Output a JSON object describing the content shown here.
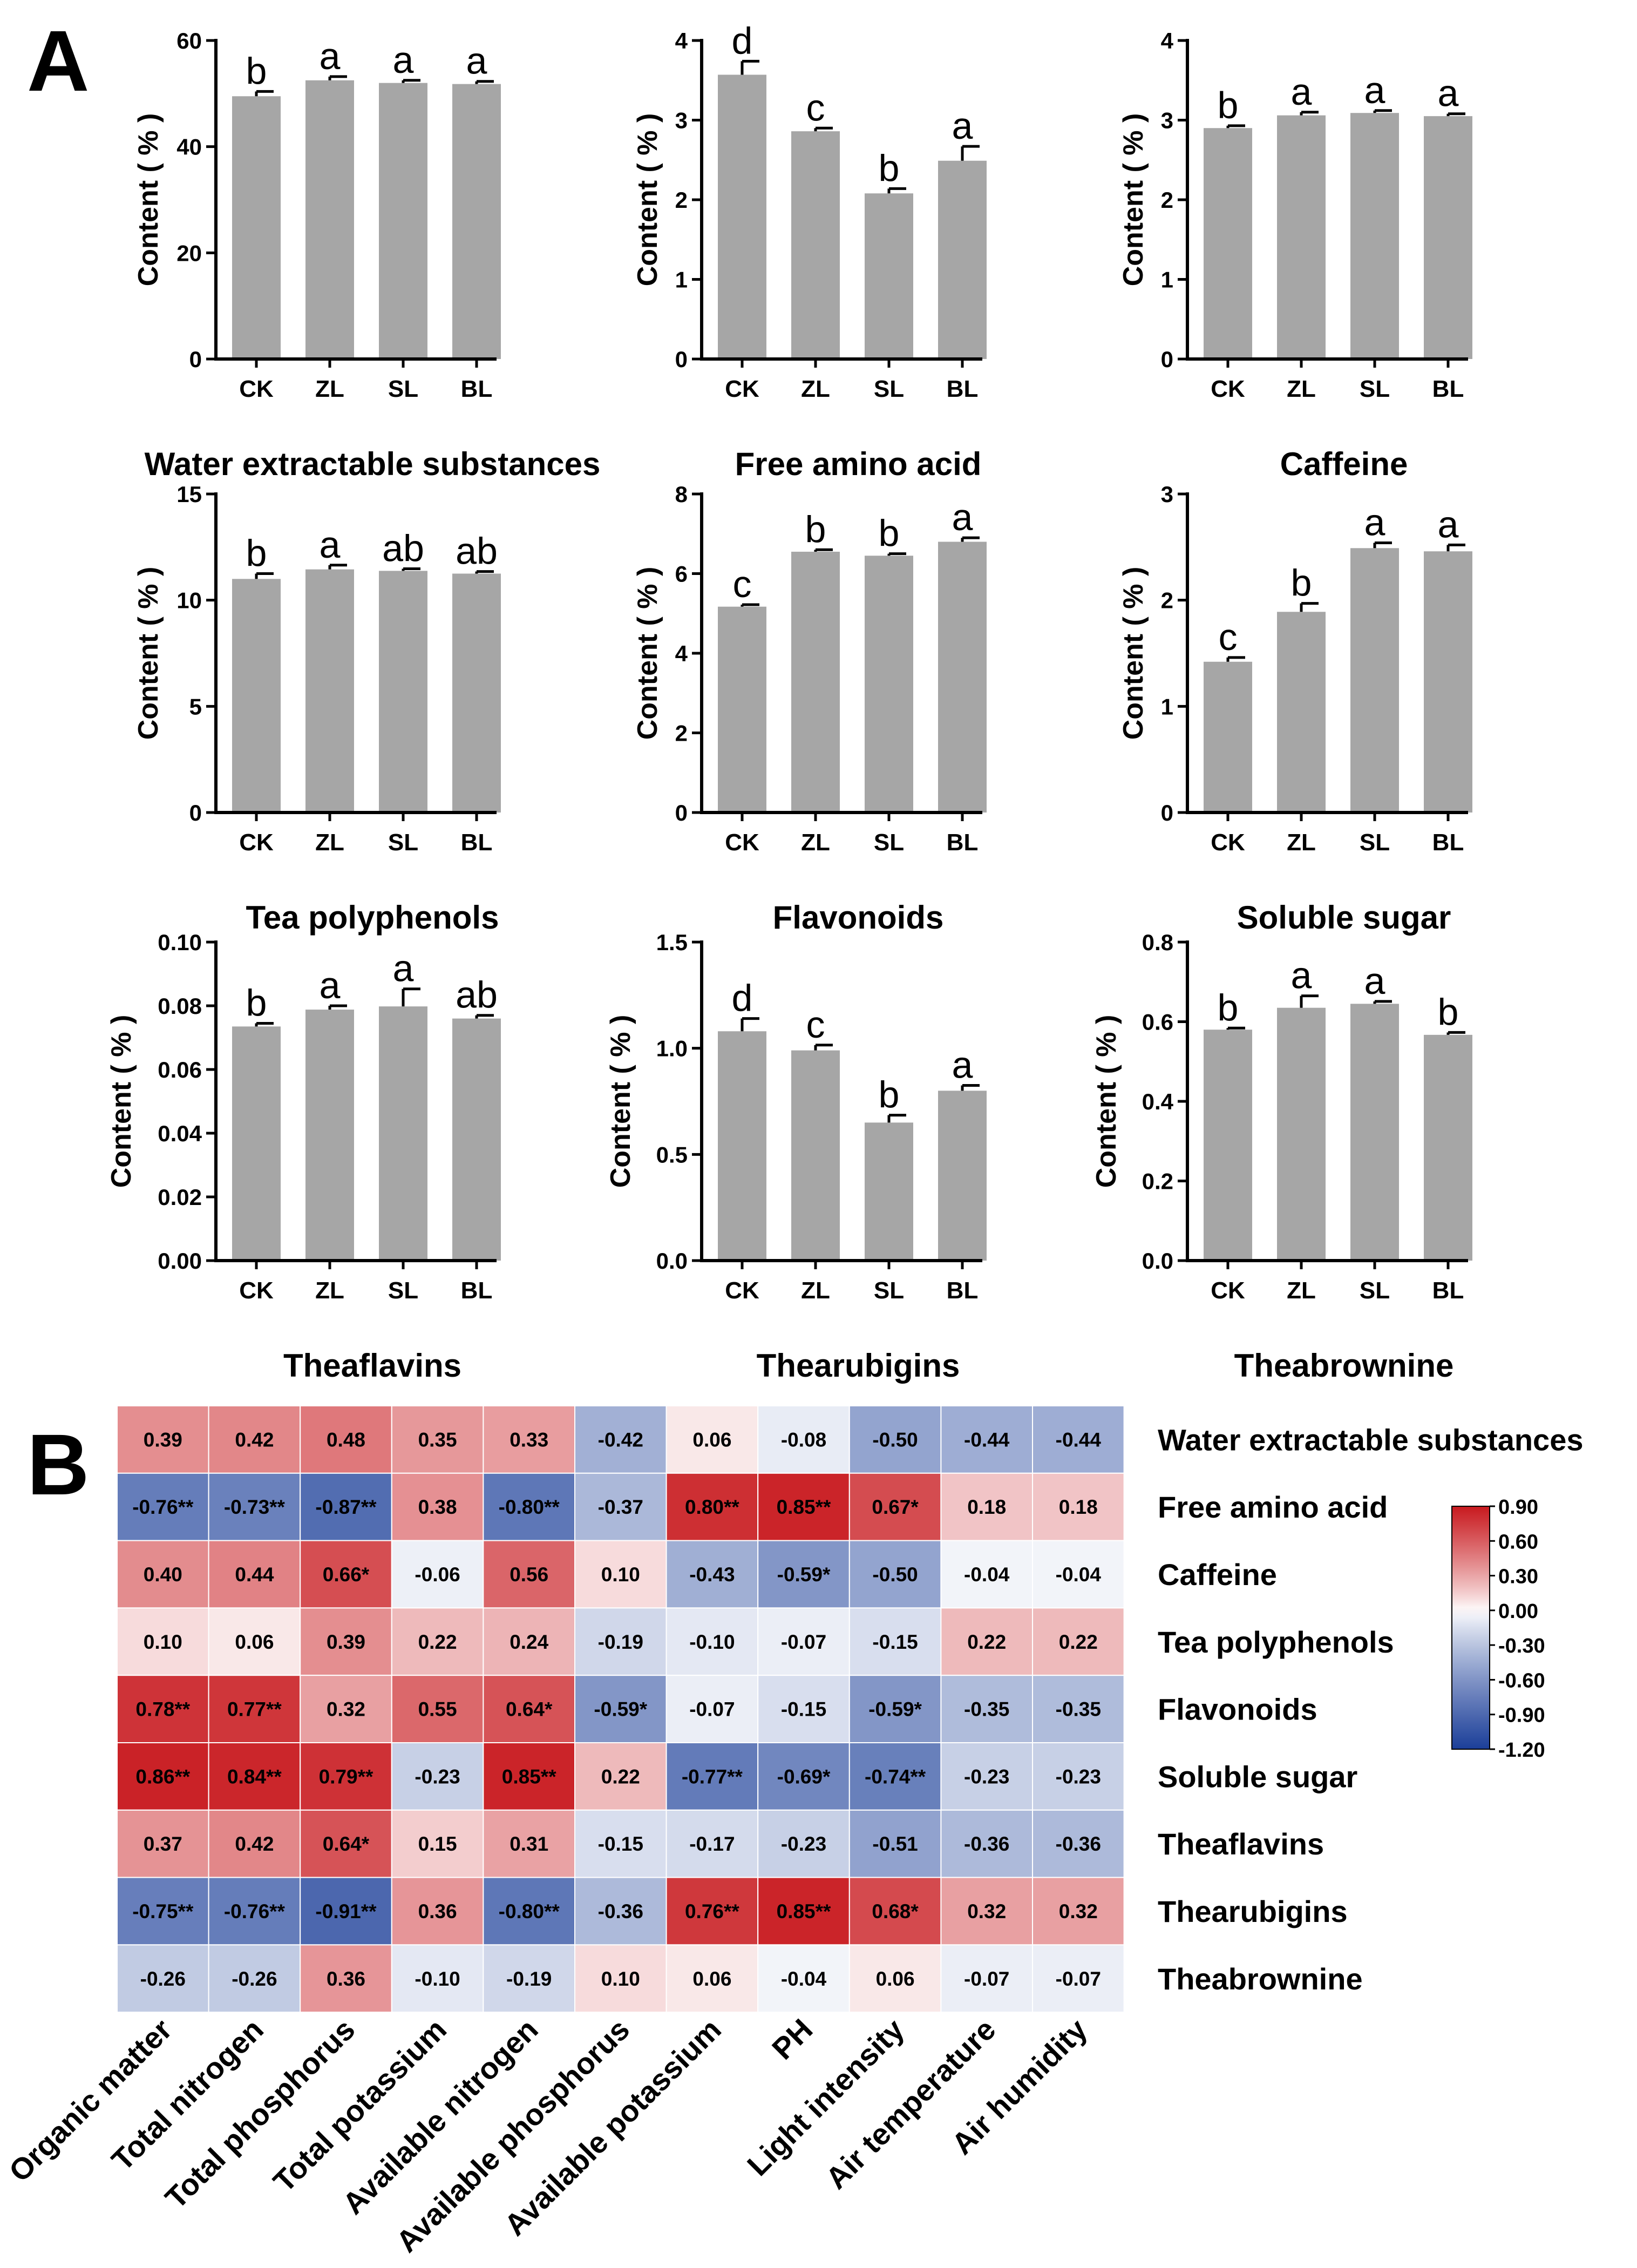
{
  "panel_labels": {
    "a": "A",
    "b": "B"
  },
  "colors": {
    "bar": "#a6a6a6",
    "axis": "#000000",
    "heat_neg": "#1c3f99",
    "heat_mid": "#ffffff",
    "heat_pos": "#c8191e"
  },
  "chart_data": [
    {
      "type": "bar",
      "title": "Water extractable substances",
      "ylabel": "Content ( % )",
      "categories": [
        "CK",
        "ZL",
        "SL",
        "BL"
      ],
      "values": [
        49.5,
        52.5,
        52.0,
        51.8
      ],
      "errors": [
        0.9,
        0.7,
        0.5,
        0.5
      ],
      "letters": [
        "b",
        "a",
        "a",
        "a"
      ],
      "ylim": [
        0,
        60
      ],
      "ticks": [
        0,
        20,
        40,
        60
      ],
      "tick_labels": [
        "0",
        "20",
        "40",
        "60"
      ]
    },
    {
      "type": "bar",
      "title": "Free amino acid",
      "ylabel": "Content ( % )",
      "categories": [
        "CK",
        "ZL",
        "SL",
        "BL"
      ],
      "values": [
        3.57,
        2.86,
        2.08,
        2.49
      ],
      "errors": [
        0.17,
        0.04,
        0.06,
        0.18
      ],
      "letters": [
        "d",
        "c",
        "b",
        "a"
      ],
      "ylim": [
        0,
        4
      ],
      "ticks": [
        0,
        1,
        2,
        3,
        4
      ],
      "tick_labels": [
        "0",
        "1",
        "2",
        "3",
        "4"
      ]
    },
    {
      "type": "bar",
      "title": "Caffeine",
      "ylabel": "Content ( % )",
      "categories": [
        "CK",
        "ZL",
        "SL",
        "BL"
      ],
      "values": [
        2.9,
        3.06,
        3.09,
        3.05
      ],
      "errors": [
        0.03,
        0.04,
        0.03,
        0.03
      ],
      "letters": [
        "b",
        "a",
        "a",
        "a"
      ],
      "ylim": [
        0,
        4
      ],
      "ticks": [
        0,
        1,
        2,
        3,
        4
      ],
      "tick_labels": [
        "0",
        "1",
        "2",
        "3",
        "4"
      ]
    },
    {
      "type": "bar",
      "title": "Tea polyphenols",
      "ylabel": "Content ( % )",
      "categories": [
        "CK",
        "ZL",
        "SL",
        "BL"
      ],
      "values": [
        11.0,
        11.45,
        11.38,
        11.25
      ],
      "errors": [
        0.25,
        0.2,
        0.1,
        0.1
      ],
      "letters": [
        "b",
        "a",
        "ab",
        "ab"
      ],
      "ylim": [
        0,
        15
      ],
      "ticks": [
        0,
        5,
        10,
        15
      ],
      "tick_labels": [
        "0",
        "5",
        "10",
        "15"
      ]
    },
    {
      "type": "bar",
      "title": "Flavonoids",
      "ylabel": "Content ( % )",
      "categories": [
        "CK",
        "ZL",
        "SL",
        "BL"
      ],
      "values": [
        5.17,
        6.55,
        6.45,
        6.8
      ],
      "errors": [
        0.05,
        0.05,
        0.05,
        0.1
      ],
      "letters": [
        "c",
        "b",
        "b",
        "a"
      ],
      "ylim": [
        0,
        8
      ],
      "ticks": [
        0,
        2,
        4,
        6,
        8
      ],
      "tick_labels": [
        "0",
        "2",
        "4",
        "6",
        "8"
      ]
    },
    {
      "type": "bar",
      "title": "Soluble sugar",
      "ylabel": "Content ( % )",
      "categories": [
        "CK",
        "ZL",
        "SL",
        "BL"
      ],
      "values": [
        1.42,
        1.89,
        2.49,
        2.46
      ],
      "errors": [
        0.04,
        0.08,
        0.05,
        0.06
      ],
      "letters": [
        "c",
        "b",
        "a",
        "a"
      ],
      "ylim": [
        0,
        3
      ],
      "ticks": [
        0,
        1,
        2,
        3
      ],
      "tick_labels": [
        "0",
        "1",
        "2",
        "3"
      ]
    },
    {
      "type": "bar",
      "title": "Theaflavins",
      "ylabel": "Content ( % )",
      "categories": [
        "CK",
        "ZL",
        "SL",
        "BL"
      ],
      "values": [
        0.0735,
        0.0788,
        0.0798,
        0.076
      ],
      "errors": [
        0.001,
        0.0012,
        0.0055,
        0.001
      ],
      "letters": [
        "b",
        "a",
        "a",
        "ab"
      ],
      "ylim": [
        0,
        0.1
      ],
      "ticks": [
        0,
        0.02,
        0.04,
        0.06,
        0.08,
        0.1
      ],
      "tick_labels": [
        "0.00",
        "0.02",
        "0.04",
        "0.06",
        "0.08",
        "0.10"
      ]
    },
    {
      "type": "bar",
      "title": "Thearubigins",
      "ylabel": "Content ( % )",
      "categories": [
        "CK",
        "ZL",
        "SL",
        "BL"
      ],
      "values": [
        1.08,
        0.99,
        0.65,
        0.8
      ],
      "errors": [
        0.06,
        0.025,
        0.035,
        0.025
      ],
      "letters": [
        "d",
        "c",
        "b",
        "a"
      ],
      "ylim": [
        0,
        1.5
      ],
      "ticks": [
        0,
        0.5,
        1.0,
        1.5
      ],
      "tick_labels": [
        "0.0",
        "0.5",
        "1.0",
        "1.5"
      ]
    },
    {
      "type": "bar",
      "title": "Theabrownine",
      "ylabel": "Content ( % )",
      "categories": [
        "CK",
        "ZL",
        "SL",
        "BL"
      ],
      "values": [
        0.58,
        0.635,
        0.645,
        0.567
      ],
      "errors": [
        0.004,
        0.03,
        0.006,
        0.006
      ],
      "letters": [
        "b",
        "a",
        "a",
        "b"
      ],
      "ylim": [
        0,
        0.8
      ],
      "ticks": [
        0,
        0.2,
        0.4,
        0.6,
        0.8
      ],
      "tick_labels": [
        "0.0",
        "0.2",
        "0.4",
        "0.6",
        "0.8"
      ]
    },
    {
      "type": "heatmap",
      "rows": [
        "Water extractable substances",
        "Free amino acid",
        "Caffeine",
        "Tea polyphenols",
        "Flavonoids",
        "Soluble sugar",
        "Theaflavins",
        "Thearubigins",
        "Theabrownine"
      ],
      "columns": [
        "Organic matter",
        "Total nitrogen",
        "Total phosphorus",
        "Total potassium",
        "Available nitrogen",
        "Available phosphorus",
        "Available potassium",
        "PH",
        "Light intensity",
        "Air temperature",
        "Air humidity"
      ],
      "values": [
        [
          0.39,
          0.42,
          0.48,
          0.35,
          0.33,
          -0.42,
          0.06,
          -0.08,
          -0.5,
          -0.44,
          -0.44
        ],
        [
          -0.76,
          -0.73,
          -0.87,
          0.38,
          -0.8,
          -0.37,
          0.8,
          0.85,
          0.67,
          0.18,
          0.18
        ],
        [
          0.4,
          0.44,
          0.66,
          -0.06,
          0.56,
          0.1,
          -0.43,
          -0.59,
          -0.5,
          -0.04,
          -0.04
        ],
        [
          0.1,
          0.06,
          0.39,
          0.22,
          0.24,
          -0.19,
          -0.1,
          -0.07,
          -0.15,
          0.22,
          0.22
        ],
        [
          0.78,
          0.77,
          0.32,
          0.55,
          0.64,
          -0.59,
          -0.07,
          -0.15,
          -0.59,
          -0.35,
          -0.35
        ],
        [
          0.86,
          0.84,
          0.79,
          -0.23,
          0.85,
          0.22,
          -0.77,
          -0.69,
          -0.74,
          -0.23,
          -0.23
        ],
        [
          0.37,
          0.42,
          0.64,
          0.15,
          0.31,
          -0.15,
          -0.17,
          -0.23,
          -0.51,
          -0.36,
          -0.36
        ],
        [
          -0.75,
          -0.76,
          -0.91,
          0.36,
          -0.8,
          -0.36,
          0.76,
          0.85,
          0.68,
          0.32,
          0.32
        ],
        [
          -0.26,
          -0.26,
          0.36,
          -0.1,
          -0.19,
          0.1,
          0.06,
          -0.04,
          0.06,
          -0.07,
          -0.07
        ]
      ],
      "labels": [
        [
          "0.39",
          "0.42",
          "0.48",
          "0.35",
          "0.33",
          "-0.42",
          "0.06",
          "-0.08",
          "-0.50",
          "-0.44",
          "-0.44"
        ],
        [
          "-0.76**",
          "-0.73**",
          "-0.87**",
          "0.38",
          "-0.80**",
          "-0.37",
          "0.80**",
          "0.85**",
          "0.67*",
          "0.18",
          "0.18"
        ],
        [
          "0.40",
          "0.44",
          "0.66*",
          "-0.06",
          "0.56",
          "0.10",
          "-0.43",
          "-0.59*",
          "-0.50",
          "-0.04",
          "-0.04"
        ],
        [
          "0.10",
          "0.06",
          "0.39",
          "0.22",
          "0.24",
          "-0.19",
          "-0.10",
          "-0.07",
          "-0.15",
          "0.22",
          "0.22"
        ],
        [
          "0.78**",
          "0.77**",
          "0.32",
          "0.55",
          "0.64*",
          "-0.59*",
          "-0.07",
          "-0.15",
          "-0.59*",
          "-0.35",
          "-0.35"
        ],
        [
          "0.86**",
          "0.84**",
          "0.79**",
          "-0.23",
          "0.85**",
          "0.22",
          "-0.77**",
          "-0.69*",
          "-0.74**",
          "-0.23",
          "-0.23"
        ],
        [
          "0.37",
          "0.42",
          "0.64*",
          "0.15",
          "0.31",
          "-0.15",
          "-0.17",
          "-0.23",
          "-0.51",
          "-0.36",
          "-0.36"
        ],
        [
          "-0.75**",
          "-0.76**",
          "-0.91**",
          "0.36",
          "-0.80**",
          "-0.36",
          "0.76**",
          "0.85**",
          "0.68*",
          "0.32",
          "0.32"
        ],
        [
          "-0.26",
          "-0.26",
          "0.36",
          "-0.10",
          "-0.19",
          "0.10",
          "0.06",
          "-0.04",
          "0.06",
          "-0.07",
          "-0.07"
        ]
      ],
      "colorbar": {
        "range": [
          -1.2,
          0.9
        ],
        "ticks": [
          0.9,
          0.6,
          0.3,
          0.0,
          -0.3,
          -0.6,
          -0.9,
          -1.2
        ],
        "tick_labels": [
          "0.90",
          "0.60",
          "0.30",
          "0.00",
          "-0.30",
          "-0.60",
          "-0.90",
          "-1.20"
        ]
      }
    }
  ]
}
